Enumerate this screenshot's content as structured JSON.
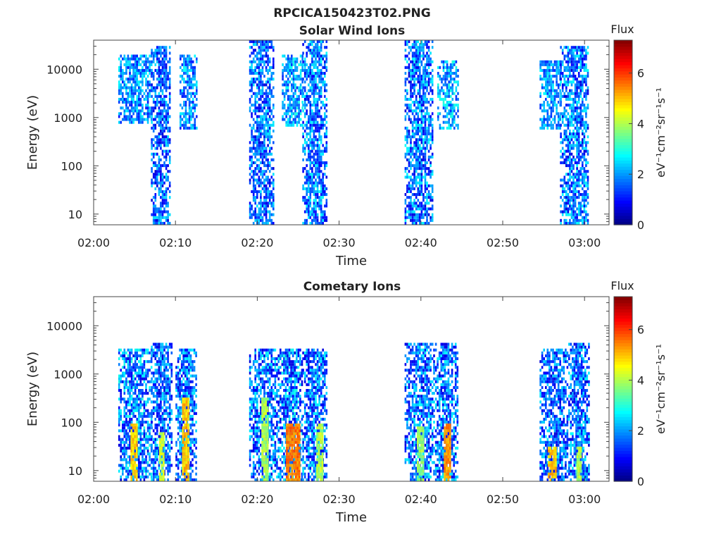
{
  "figure": {
    "main_title": "RPCICA150423T02.PNG"
  },
  "chart_data": [
    {
      "type": "heatmap",
      "title": "Solar Wind Ions",
      "xlabel": "Time",
      "ylabel": "Energy (eV)",
      "x_ticks": [
        "02:00",
        "02:10",
        "02:20",
        "02:30",
        "02:40",
        "02:50",
        "03:00"
      ],
      "x_range_minutes": [
        0,
        63
      ],
      "y_scale": "log",
      "y_ticks": [
        10,
        100,
        1000,
        10000
      ],
      "y_tick_labels": [
        "10",
        "100",
        "1000",
        "10000"
      ],
      "y_range": [
        6,
        40000
      ],
      "colorbar": {
        "title": "Flux",
        "label": "eV⁻¹cm⁻²sr⁻¹s⁻¹",
        "ticks": [
          0,
          2,
          4,
          6
        ],
        "tick_labels": [
          "0",
          "2",
          "4",
          "6"
        ],
        "range": [
          0,
          7.3
        ],
        "colormap": "jet"
      },
      "bursts": [
        {
          "start": 3.0,
          "end": 7.0,
          "emin": 700,
          "emax": 20000,
          "vlo": 1.0,
          "vhi": 2.8
        },
        {
          "start": 7.0,
          "end": 9.3,
          "emin": 6,
          "emax": 30000,
          "vlo": 0.6,
          "vhi": 2.6
        },
        {
          "start": 10.5,
          "end": 12.5,
          "emin": 500,
          "emax": 20000,
          "vlo": 1.0,
          "vhi": 2.8
        },
        {
          "start": 19.0,
          "end": 22.0,
          "emin": 6,
          "emax": 35000,
          "vlo": 0.6,
          "vhi": 2.6
        },
        {
          "start": 23.0,
          "end": 25.5,
          "emin": 600,
          "emax": 20000,
          "vlo": 1.2,
          "vhi": 3.0
        },
        {
          "start": 25.5,
          "end": 28.5,
          "emin": 6,
          "emax": 35000,
          "vlo": 0.7,
          "vhi": 2.8
        },
        {
          "start": 38.0,
          "end": 41.5,
          "emin": 6,
          "emax": 35000,
          "vlo": 0.6,
          "vhi": 2.8
        },
        {
          "start": 42.0,
          "end": 44.5,
          "emin": 500,
          "emax": 15000,
          "vlo": 1.2,
          "vhi": 3.0
        },
        {
          "start": 54.5,
          "end": 57.0,
          "emin": 500,
          "emax": 15000,
          "vlo": 1.2,
          "vhi": 2.8
        },
        {
          "start": 57.0,
          "end": 60.5,
          "emin": 6,
          "emax": 30000,
          "vlo": 0.6,
          "vhi": 2.8
        }
      ]
    },
    {
      "type": "heatmap",
      "title": "Cometary Ions",
      "xlabel": "Time",
      "ylabel": "Energy (eV)",
      "x_ticks": [
        "02:00",
        "02:10",
        "02:20",
        "02:30",
        "02:40",
        "02:50",
        "03:00"
      ],
      "x_range_minutes": [
        0,
        63
      ],
      "y_scale": "log",
      "y_ticks": [
        10,
        100,
        1000,
        10000
      ],
      "y_tick_labels": [
        "10",
        "100",
        "1000",
        "10000"
      ],
      "y_range": [
        6,
        40000
      ],
      "colorbar": {
        "title": "Flux",
        "label": "eV⁻¹cm⁻²sr⁻¹s⁻¹",
        "ticks": [
          0,
          2,
          4,
          6
        ],
        "tick_labels": [
          "0",
          "2",
          "4",
          "6"
        ],
        "range": [
          0,
          7.3
        ],
        "colormap": "jet"
      },
      "bursts": [
        {
          "start": 3.0,
          "end": 7.0,
          "emin": 6,
          "emax": 3000,
          "vlo": 0.6,
          "vhi": 3.0
        },
        {
          "start": 7.0,
          "end": 9.5,
          "emin": 6,
          "emax": 4000,
          "vlo": 0.6,
          "vhi": 2.6
        },
        {
          "start": 10.0,
          "end": 12.5,
          "emin": 6,
          "emax": 3000,
          "vlo": 0.6,
          "vhi": 2.8
        },
        {
          "start": 19.0,
          "end": 22.5,
          "emin": 6,
          "emax": 3000,
          "vlo": 0.6,
          "vhi": 2.8
        },
        {
          "start": 22.5,
          "end": 25.5,
          "emin": 6,
          "emax": 3000,
          "vlo": 0.6,
          "vhi": 3.0
        },
        {
          "start": 25.5,
          "end": 28.5,
          "emin": 6,
          "emax": 3000,
          "vlo": 0.6,
          "vhi": 2.8
        },
        {
          "start": 38.0,
          "end": 41.5,
          "emin": 6,
          "emax": 4000,
          "vlo": 0.6,
          "vhi": 2.8
        },
        {
          "start": 41.5,
          "end": 44.5,
          "emin": 6,
          "emax": 4000,
          "vlo": 0.6,
          "vhi": 2.8
        },
        {
          "start": 54.5,
          "end": 58.0,
          "emin": 6,
          "emax": 3000,
          "vlo": 0.6,
          "vhi": 2.6
        },
        {
          "start": 58.0,
          "end": 60.5,
          "emin": 6,
          "emax": 4000,
          "vlo": 0.6,
          "vhi": 2.8
        }
      ],
      "peaks": [
        {
          "start": 4.5,
          "end": 5.3,
          "emin": 6,
          "emax": 90,
          "v": 4.9
        },
        {
          "start": 8.0,
          "end": 8.5,
          "emin": 6,
          "emax": 60,
          "v": 4.2
        },
        {
          "start": 10.8,
          "end": 11.5,
          "emin": 6,
          "emax": 300,
          "v": 5.0
        },
        {
          "start": 20.5,
          "end": 21.2,
          "emin": 6,
          "emax": 300,
          "v": 4.0
        },
        {
          "start": 23.5,
          "end": 25.2,
          "emin": 6,
          "emax": 90,
          "v": 5.5
        },
        {
          "start": 27.2,
          "end": 28.0,
          "emin": 6,
          "emax": 90,
          "v": 4.0
        },
        {
          "start": 39.5,
          "end": 40.2,
          "emin": 6,
          "emax": 80,
          "v": 3.8
        },
        {
          "start": 42.8,
          "end": 43.6,
          "emin": 6,
          "emax": 90,
          "v": 5.3
        },
        {
          "start": 55.5,
          "end": 56.5,
          "emin": 6,
          "emax": 30,
          "v": 5.0
        },
        {
          "start": 59.0,
          "end": 59.6,
          "emin": 6,
          "emax": 30,
          "v": 4.0
        }
      ]
    }
  ]
}
